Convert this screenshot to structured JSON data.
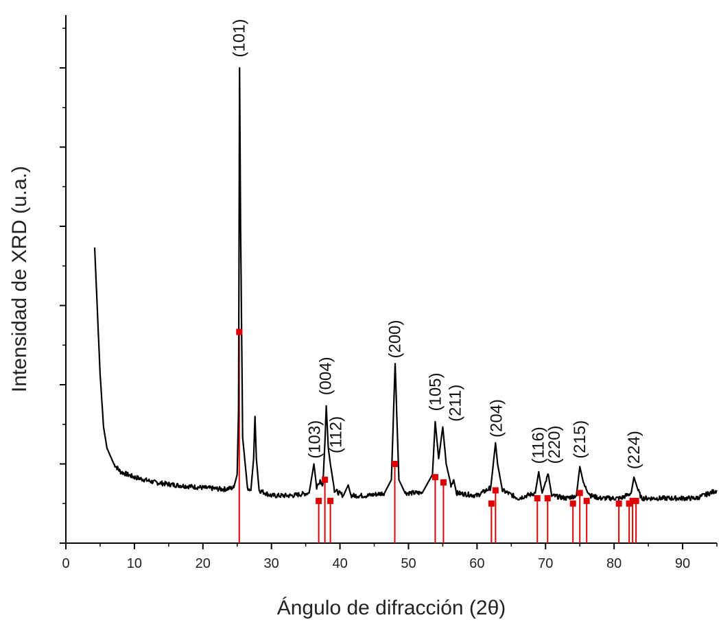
{
  "chart_data": {
    "type": "line",
    "xlabel": "Ángulo de difracción (2θ)",
    "ylabel": "Intensidad de XRD (u.a.)",
    "xlim": [
      0,
      95
    ],
    "ylim": [
      0,
      100
    ],
    "x_ticks": [
      "0",
      "10",
      "20",
      "30",
      "40",
      "50",
      "60",
      "70",
      "80",
      "90"
    ],
    "y_tick_labels_shown": false,
    "grid": false,
    "legend": "none",
    "colors": {
      "pattern": "#000000",
      "reference": "#e00000"
    },
    "series": [
      {
        "values": [
          [
            4.2,
            56
          ],
          [
            4.5,
            47
          ],
          [
            5,
            32
          ],
          [
            5.5,
            22
          ],
          [
            6,
            18
          ],
          [
            7,
            15
          ],
          [
            8,
            13.5
          ],
          [
            10,
            12.5
          ],
          [
            13,
            11.5
          ],
          [
            16,
            11
          ],
          [
            20,
            10.5
          ],
          [
            23,
            10.2
          ],
          [
            24.5,
            10.5
          ],
          [
            25,
            13
          ],
          [
            25.2,
            25
          ],
          [
            25.35,
            90
          ],
          [
            25.5,
            60
          ],
          [
            25.8,
            20
          ],
          [
            26.5,
            10.5
          ],
          [
            27,
            10
          ],
          [
            27.4,
            16
          ],
          [
            27.6,
            24
          ],
          [
            27.8,
            16
          ],
          [
            28.2,
            10
          ],
          [
            30,
            9
          ],
          [
            33,
            9
          ],
          [
            35.5,
            9.5
          ],
          [
            36.2,
            15
          ],
          [
            36.6,
            10.5
          ],
          [
            37.1,
            12
          ],
          [
            37.5,
            11
          ],
          [
            37.8,
            19
          ],
          [
            38.0,
            26
          ],
          [
            38.3,
            18
          ],
          [
            38.6,
            15
          ],
          [
            39.2,
            10
          ],
          [
            40.5,
            9
          ],
          [
            41.2,
            11
          ],
          [
            41.6,
            9
          ],
          [
            44,
            9
          ],
          [
            46.5,
            9.5
          ],
          [
            47.5,
            12
          ],
          [
            48.05,
            34
          ],
          [
            48.6,
            12
          ],
          [
            49.5,
            9.5
          ],
          [
            52,
            9.5
          ],
          [
            53.5,
            13
          ],
          [
            53.9,
            23
          ],
          [
            54.4,
            16
          ],
          [
            55.0,
            22
          ],
          [
            55.5,
            15
          ],
          [
            56.2,
            11
          ],
          [
            56.6,
            12
          ],
          [
            57,
            9.5
          ],
          [
            60,
            9
          ],
          [
            62,
            10.5
          ],
          [
            62.7,
            19
          ],
          [
            63.0,
            15
          ],
          [
            63.7,
            10
          ],
          [
            66,
            8.5
          ],
          [
            68.5,
            9.5
          ],
          [
            69.0,
            13.5
          ],
          [
            69.5,
            9.5
          ],
          [
            70.1,
            12
          ],
          [
            70.4,
            13
          ],
          [
            70.9,
            9
          ],
          [
            73,
            8.5
          ],
          [
            74.5,
            9
          ],
          [
            75.0,
            14.5
          ],
          [
            75.6,
            11
          ],
          [
            76.1,
            10
          ],
          [
            76.6,
            9
          ],
          [
            78,
            8.5
          ],
          [
            81,
            8.5
          ],
          [
            82.5,
            9.5
          ],
          [
            82.9,
            12.5
          ],
          [
            83.5,
            10
          ],
          [
            84,
            8.5
          ],
          [
            88,
            8.5
          ],
          [
            92,
            8.5
          ],
          [
            94,
            9.5
          ],
          [
            95,
            10
          ]
        ]
      }
    ],
    "reference_peaks": [
      {
        "x": 25.3,
        "y": 40
      },
      {
        "x": 36.9,
        "y": 8
      },
      {
        "x": 37.8,
        "y": 12
      },
      {
        "x": 38.6,
        "y": 8
      },
      {
        "x": 48.0,
        "y": 15
      },
      {
        "x": 53.9,
        "y": 12.5
      },
      {
        "x": 55.1,
        "y": 11.5
      },
      {
        "x": 62.1,
        "y": 7.5
      },
      {
        "x": 62.7,
        "y": 10
      },
      {
        "x": 68.8,
        "y": 8.5
      },
      {
        "x": 70.3,
        "y": 8.5
      },
      {
        "x": 74.0,
        "y": 7.5
      },
      {
        "x": 75.0,
        "y": 9.5
      },
      {
        "x": 76.0,
        "y": 8
      },
      {
        "x": 80.7,
        "y": 7.5
      },
      {
        "x": 82.2,
        "y": 7.5
      },
      {
        "x": 82.7,
        "y": 8
      },
      {
        "x": 83.2,
        "y": 8
      }
    ],
    "annotations": [
      {
        "text": "(101)",
        "x": 25.3,
        "y": 92
      },
      {
        "text": "(103)",
        "x": 36.3,
        "y": 16
      },
      {
        "text": "(004)",
        "x": 37.9,
        "y": 28
      },
      {
        "text": "(112)",
        "x": 39.4,
        "y": 17
      },
      {
        "text": "(200)",
        "x": 48.0,
        "y": 35
      },
      {
        "text": "(105)",
        "x": 53.9,
        "y": 25
      },
      {
        "text": "(211)",
        "x": 56.8,
        "y": 23
      },
      {
        "text": "(204)",
        "x": 62.8,
        "y": 20
      },
      {
        "text": "(116)",
        "x": 68.9,
        "y": 15
      },
      {
        "text": "(220)",
        "x": 71.3,
        "y": 15
      },
      {
        "text": "(215)",
        "x": 75.0,
        "y": 16
      },
      {
        "text": "(224)",
        "x": 82.9,
        "y": 14
      }
    ]
  }
}
